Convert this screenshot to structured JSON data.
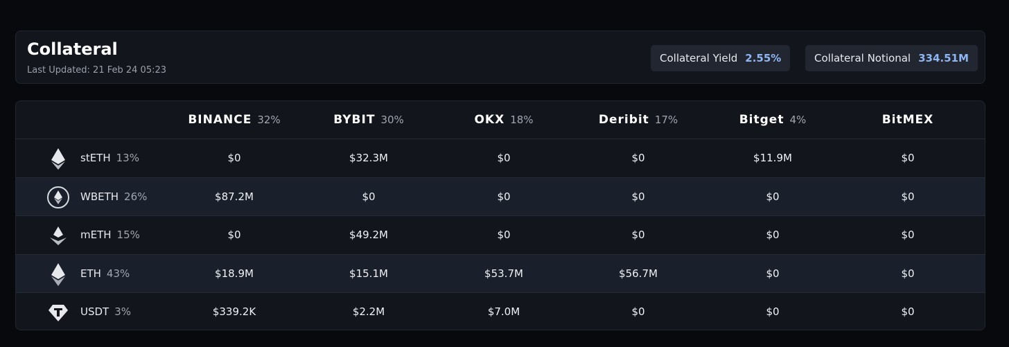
{
  "header": {
    "title": "Collateral",
    "subtitle": "Last Updated: 21 Feb 24 05:23",
    "stats": [
      {
        "label": "Collateral Yield",
        "value": "2.55%"
      },
      {
        "label": "Collateral Notional",
        "value": "334.51M"
      }
    ]
  },
  "table": {
    "columns": [
      {
        "name": "BINANCE",
        "share": "32%"
      },
      {
        "name": "BYBIT",
        "share": "30%"
      },
      {
        "name": "OKX",
        "share": "18%"
      },
      {
        "name": "Deribit",
        "share": "17%"
      },
      {
        "name": "Bitget",
        "share": "4%"
      },
      {
        "name": "BitMEX"
      }
    ],
    "rows": [
      {
        "asset": "stETH",
        "share": "13%",
        "cells": [
          "$0",
          "$32.3M",
          "$0",
          "$0",
          "$11.9M",
          "$0"
        ]
      },
      {
        "asset": "WBETH",
        "share": "26%",
        "cells": [
          "$87.2M",
          "$0",
          "$0",
          "$0",
          "$0",
          "$0"
        ]
      },
      {
        "asset": "mETH",
        "share": "15%",
        "cells": [
          "$0",
          "$49.2M",
          "$0",
          "$0",
          "$0",
          "$0"
        ]
      },
      {
        "asset": "ETH",
        "share": "43%",
        "cells": [
          "$18.9M",
          "$15.1M",
          "$53.7M",
          "$56.7M",
          "$0",
          "$0"
        ]
      },
      {
        "asset": "USDT",
        "share": "3%",
        "cells": [
          "$339.2K",
          "$2.2M",
          "$7.0M",
          "$0",
          "$0",
          "$0"
        ]
      }
    ]
  }
}
